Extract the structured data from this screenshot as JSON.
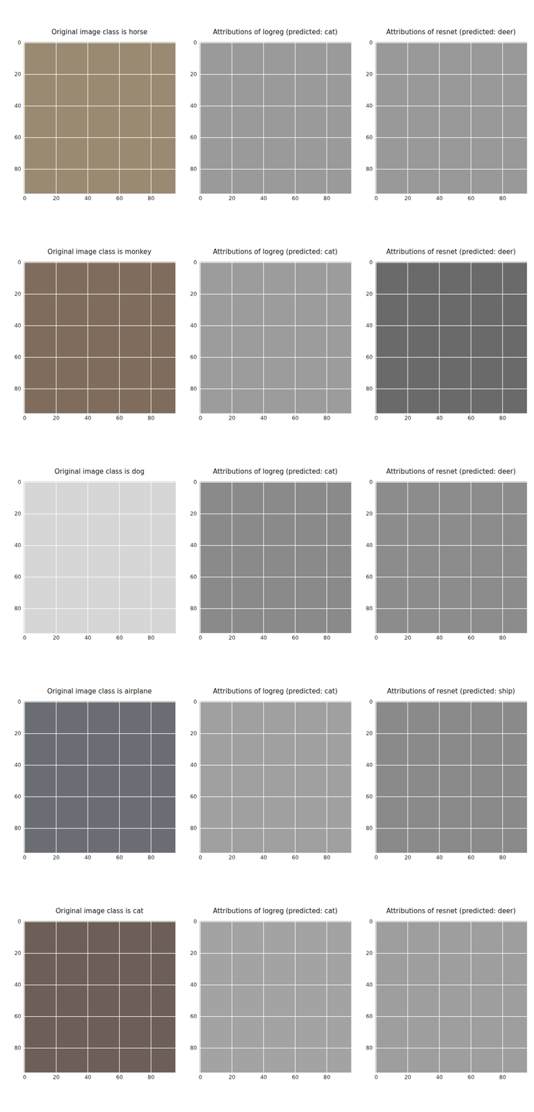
{
  "chart_data": [
    {
      "type": "image",
      "title": "Original image class is horse",
      "color": "#9a8a72",
      "xlim": [
        -0.5,
        95.5
      ],
      "ylim": [
        95.5,
        -0.5
      ],
      "xticks": [
        0,
        20,
        40,
        60,
        80
      ],
      "yticks": [
        0,
        20,
        40,
        60,
        80
      ],
      "grid": true
    },
    {
      "type": "image",
      "title": "Attributions of logreg (predicted: cat)",
      "color": "#9a9a9a",
      "xlim": [
        -0.5,
        95.5
      ],
      "ylim": [
        95.5,
        -0.5
      ],
      "xticks": [
        0,
        20,
        40,
        60,
        80
      ],
      "yticks": [
        0,
        20,
        40,
        60,
        80
      ],
      "grid": true
    },
    {
      "type": "image",
      "title": "Attributions of resnet (predicted: deer)",
      "color": "#999999",
      "xlim": [
        -0.5,
        95.5
      ],
      "ylim": [
        95.5,
        -0.5
      ],
      "xticks": [
        0,
        20,
        40,
        60,
        80
      ],
      "yticks": [
        0,
        20,
        40,
        60,
        80
      ],
      "grid": true
    },
    {
      "type": "image",
      "title": "Original image class is monkey",
      "color": "#7f6c5c",
      "xlim": [
        -0.5,
        95.5
      ],
      "ylim": [
        95.5,
        -0.5
      ],
      "xticks": [
        0,
        20,
        40,
        60,
        80
      ],
      "yticks": [
        0,
        20,
        40,
        60,
        80
      ],
      "grid": true
    },
    {
      "type": "image",
      "title": "Attributions of logreg (predicted: cat)",
      "color": "#9c9c9c",
      "xlim": [
        -0.5,
        95.5
      ],
      "ylim": [
        95.5,
        -0.5
      ],
      "xticks": [
        0,
        20,
        40,
        60,
        80
      ],
      "yticks": [
        0,
        20,
        40,
        60,
        80
      ],
      "grid": true
    },
    {
      "type": "image",
      "title": "Attributions of resnet (predicted: deer)",
      "color": "#6a6a6a",
      "xlim": [
        -0.5,
        95.5
      ],
      "ylim": [
        95.5,
        -0.5
      ],
      "xticks": [
        0,
        20,
        40,
        60,
        80
      ],
      "yticks": [
        0,
        20,
        40,
        60,
        80
      ],
      "grid": true
    },
    {
      "type": "image",
      "title": "Original image class is dog",
      "color": "#d6d6d6",
      "xlim": [
        -0.5,
        95.5
      ],
      "ylim": [
        95.5,
        -0.5
      ],
      "xticks": [
        0,
        20,
        40,
        60,
        80
      ],
      "yticks": [
        0,
        20,
        40,
        60,
        80
      ],
      "grid": true
    },
    {
      "type": "image",
      "title": "Attributions of logreg (predicted: cat)",
      "color": "#8a8a8a",
      "xlim": [
        -0.5,
        95.5
      ],
      "ylim": [
        95.5,
        -0.5
      ],
      "xticks": [
        0,
        20,
        40,
        60,
        80
      ],
      "yticks": [
        0,
        20,
        40,
        60,
        80
      ],
      "grid": true
    },
    {
      "type": "image",
      "title": "Attributions of resnet (predicted: deer)",
      "color": "#8c8c8c",
      "xlim": [
        -0.5,
        95.5
      ],
      "ylim": [
        95.5,
        -0.5
      ],
      "xticks": [
        0,
        20,
        40,
        60,
        80
      ],
      "yticks": [
        0,
        20,
        40,
        60,
        80
      ],
      "grid": true
    },
    {
      "type": "image",
      "title": "Original image class is airplane",
      "color": "#6a6e74",
      "xlim": [
        -0.5,
        95.5
      ],
      "ylim": [
        95.5,
        -0.5
      ],
      "xticks": [
        0,
        20,
        40,
        60,
        80
      ],
      "yticks": [
        0,
        20,
        40,
        60,
        80
      ],
      "grid": true
    },
    {
      "type": "image",
      "title": "Attributions of logreg (predicted: cat)",
      "color": "#a0a0a0",
      "xlim": [
        -0.5,
        95.5
      ],
      "ylim": [
        95.5,
        -0.5
      ],
      "xticks": [
        0,
        20,
        40,
        60,
        80
      ],
      "yticks": [
        0,
        20,
        40,
        60,
        80
      ],
      "grid": true
    },
    {
      "type": "image",
      "title": "Attributions of resnet (predicted: ship)",
      "color": "#8a8a8a",
      "xlim": [
        -0.5,
        95.5
      ],
      "ylim": [
        95.5,
        -0.5
      ],
      "xticks": [
        0,
        20,
        40,
        60,
        80
      ],
      "yticks": [
        0,
        20,
        40,
        60,
        80
      ],
      "grid": true
    },
    {
      "type": "image",
      "title": "Original image class is cat",
      "color": "#6e5e58",
      "xlim": [
        -0.5,
        95.5
      ],
      "ylim": [
        95.5,
        -0.5
      ],
      "xticks": [
        0,
        20,
        40,
        60,
        80
      ],
      "yticks": [
        0,
        20,
        40,
        60,
        80
      ],
      "grid": true
    },
    {
      "type": "image",
      "title": "Attributions of logreg (predicted: cat)",
      "color": "#a3a3a3",
      "xlim": [
        -0.5,
        95.5
      ],
      "ylim": [
        95.5,
        -0.5
      ],
      "xticks": [
        0,
        20,
        40,
        60,
        80
      ],
      "yticks": [
        0,
        20,
        40,
        60,
        80
      ],
      "grid": true
    },
    {
      "type": "image",
      "title": "Attributions of resnet (predicted: deer)",
      "color": "#9e9e9e",
      "xlim": [
        -0.5,
        95.5
      ],
      "ylim": [
        95.5,
        -0.5
      ],
      "xticks": [
        0,
        20,
        40,
        60,
        80
      ],
      "yticks": [
        0,
        20,
        40,
        60,
        80
      ],
      "grid": true
    }
  ]
}
